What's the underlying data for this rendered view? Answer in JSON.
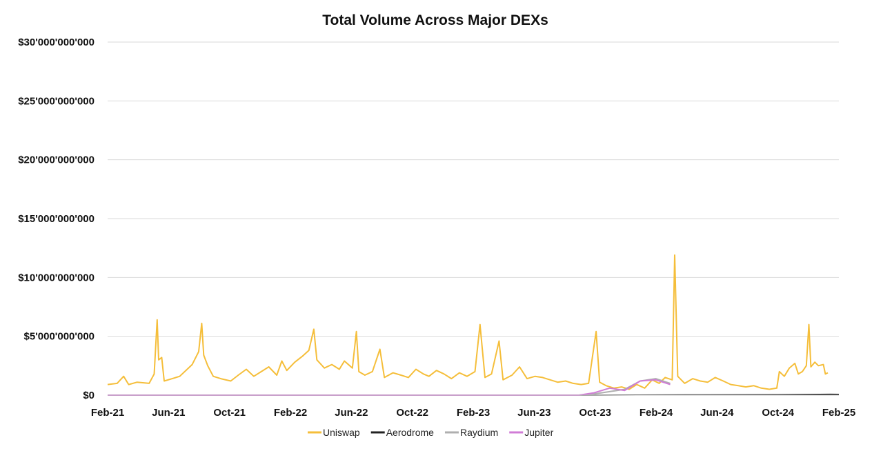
{
  "chart_data": {
    "type": "line",
    "title": "Total Volume Across Major DEXs",
    "xlabel": "",
    "ylabel": "",
    "x_ticks": [
      "Feb-21",
      "Jun-21",
      "Oct-21",
      "Feb-22",
      "Jun-22",
      "Oct-22",
      "Feb-23",
      "Jun-23",
      "Oct-23",
      "Feb-24",
      "Jun-24",
      "Oct-24",
      "Feb-25"
    ],
    "y_ticks": [
      "$0",
      "$5'000'000'000",
      "$10'000'000'000",
      "$15'000'000'000",
      "$20'000'000'000",
      "$25'000'000'000",
      "$30'000'000'000"
    ],
    "ylim": [
      0,
      30000000000
    ],
    "x_range": [
      "2021-02-01",
      "2025-02-01"
    ],
    "grid": "horizontal",
    "legend_position": "bottom",
    "series": [
      {
        "name": "Uniswap",
        "color": "#F5BE3A",
        "points": [
          [
            "2021-02-01",
            0.9
          ],
          [
            "2021-02-20",
            1.0
          ],
          [
            "2021-03-05",
            1.6
          ],
          [
            "2021-03-15",
            0.9
          ],
          [
            "2021-04-01",
            1.1
          ],
          [
            "2021-04-25",
            1.0
          ],
          [
            "2021-05-05",
            1.8
          ],
          [
            "2021-05-11",
            6.4
          ],
          [
            "2021-05-14",
            3.0
          ],
          [
            "2021-05-20",
            3.2
          ],
          [
            "2021-05-25",
            1.2
          ],
          [
            "2021-06-10",
            1.4
          ],
          [
            "2021-06-25",
            1.6
          ],
          [
            "2021-07-20",
            2.6
          ],
          [
            "2021-08-02",
            3.7
          ],
          [
            "2021-08-08",
            6.1
          ],
          [
            "2021-08-12",
            3.4
          ],
          [
            "2021-08-20",
            2.5
          ],
          [
            "2021-08-31",
            1.6
          ],
          [
            "2021-09-15",
            1.4
          ],
          [
            "2021-10-05",
            1.2
          ],
          [
            "2021-10-20",
            1.7
          ],
          [
            "2021-11-05",
            2.2
          ],
          [
            "2021-11-20",
            1.6
          ],
          [
            "2021-12-05",
            2.0
          ],
          [
            "2021-12-20",
            2.4
          ],
          [
            "2022-01-05",
            1.7
          ],
          [
            "2022-01-15",
            2.9
          ],
          [
            "2022-01-25",
            2.1
          ],
          [
            "2022-02-10",
            2.8
          ],
          [
            "2022-02-25",
            3.3
          ],
          [
            "2022-03-10",
            3.8
          ],
          [
            "2022-03-20",
            5.6
          ],
          [
            "2022-03-26",
            3.0
          ],
          [
            "2022-04-10",
            2.3
          ],
          [
            "2022-04-25",
            2.6
          ],
          [
            "2022-05-10",
            2.2
          ],
          [
            "2022-05-20",
            2.9
          ],
          [
            "2022-06-05",
            2.3
          ],
          [
            "2022-06-13",
            5.4
          ],
          [
            "2022-06-18",
            2.0
          ],
          [
            "2022-06-30",
            1.7
          ],
          [
            "2022-07-15",
            2.0
          ],
          [
            "2022-07-30",
            3.9
          ],
          [
            "2022-08-08",
            1.5
          ],
          [
            "2022-08-25",
            1.9
          ],
          [
            "2022-09-10",
            1.7
          ],
          [
            "2022-09-25",
            1.5
          ],
          [
            "2022-10-10",
            2.2
          ],
          [
            "2022-10-25",
            1.8
          ],
          [
            "2022-11-05",
            1.6
          ],
          [
            "2022-11-20",
            2.1
          ],
          [
            "2022-12-05",
            1.8
          ],
          [
            "2022-12-20",
            1.4
          ],
          [
            "2023-01-05",
            1.9
          ],
          [
            "2023-01-20",
            1.6
          ],
          [
            "2023-02-05",
            2.0
          ],
          [
            "2023-02-15",
            6.0
          ],
          [
            "2023-02-25",
            1.5
          ],
          [
            "2023-03-10",
            1.8
          ],
          [
            "2023-03-25",
            4.6
          ],
          [
            "2023-04-02",
            1.3
          ],
          [
            "2023-04-20",
            1.7
          ],
          [
            "2023-05-05",
            2.4
          ],
          [
            "2023-05-20",
            1.4
          ],
          [
            "2023-06-05",
            1.6
          ],
          [
            "2023-06-20",
            1.5
          ],
          [
            "2023-07-05",
            1.3
          ],
          [
            "2023-07-20",
            1.1
          ],
          [
            "2023-08-05",
            1.2
          ],
          [
            "2023-08-20",
            1.0
          ],
          [
            "2023-09-05",
            0.9
          ],
          [
            "2023-09-20",
            1.0
          ],
          [
            "2023-10-05",
            5.4
          ],
          [
            "2023-10-12",
            1.1
          ],
          [
            "2023-10-25",
            0.8
          ],
          [
            "2023-11-10",
            0.6
          ],
          [
            "2023-11-25",
            0.7
          ],
          [
            "2023-12-10",
            0.5
          ],
          [
            "2023-12-25",
            0.9
          ],
          [
            "2024-01-10",
            0.6
          ],
          [
            "2024-01-25",
            1.3
          ],
          [
            "2024-02-08",
            1.0
          ],
          [
            "2024-02-20",
            1.5
          ],
          [
            "2024-03-05",
            1.3
          ],
          [
            "2024-03-10",
            11.9
          ],
          [
            "2024-03-16",
            1.6
          ],
          [
            "2024-03-30",
            1.0
          ],
          [
            "2024-04-15",
            1.4
          ],
          [
            "2024-04-30",
            1.2
          ],
          [
            "2024-05-15",
            1.1
          ],
          [
            "2024-05-30",
            1.5
          ],
          [
            "2024-06-15",
            1.2
          ],
          [
            "2024-06-30",
            0.9
          ],
          [
            "2024-07-15",
            0.8
          ],
          [
            "2024-07-30",
            0.7
          ],
          [
            "2024-08-15",
            0.8
          ],
          [
            "2024-08-30",
            0.6
          ],
          [
            "2024-09-15",
            0.5
          ],
          [
            "2024-09-30",
            0.6
          ],
          [
            "2024-10-05",
            2.0
          ],
          [
            "2024-10-15",
            1.6
          ],
          [
            "2024-10-25",
            2.3
          ],
          [
            "2024-11-05",
            2.7
          ],
          [
            "2024-11-12",
            1.8
          ],
          [
            "2024-11-20",
            2.0
          ],
          [
            "2024-11-28",
            2.5
          ],
          [
            "2024-12-03",
            6.0
          ],
          [
            "2024-12-07",
            2.4
          ],
          [
            "2024-12-15",
            2.8
          ],
          [
            "2024-12-22",
            2.5
          ],
          [
            "2025-01-01",
            2.6
          ],
          [
            "2025-01-05",
            1.8
          ],
          [
            "2025-01-10",
            1.9
          ]
        ]
      },
      {
        "name": "Aerodrome",
        "color": "#222222",
        "points": [
          [
            "2021-02-01",
            0
          ],
          [
            "2023-10-01",
            0
          ],
          [
            "2024-04-01",
            0.03
          ],
          [
            "2024-10-01",
            0.04
          ],
          [
            "2025-01-15",
            0.08
          ],
          [
            "2025-02-01",
            0.07
          ]
        ]
      },
      {
        "name": "Raydium",
        "color": "#AFAFAF",
        "points": [
          [
            "2021-02-01",
            0
          ],
          [
            "2023-09-01",
            0
          ],
          [
            "2023-10-01",
            0.1
          ],
          [
            "2023-11-01",
            0.3
          ],
          [
            "2023-12-01",
            0.5
          ],
          [
            "2024-01-01",
            1.2
          ],
          [
            "2024-02-01",
            1.4
          ],
          [
            "2024-03-01",
            1.0
          ]
        ]
      },
      {
        "name": "Jupiter",
        "color": "#D07CD6",
        "points": [
          [
            "2021-02-01",
            0
          ],
          [
            "2023-09-01",
            0
          ],
          [
            "2023-10-01",
            0.2
          ],
          [
            "2023-11-01",
            0.6
          ],
          [
            "2023-12-01",
            0.4
          ],
          [
            "2024-01-01",
            1.2
          ],
          [
            "2024-02-01",
            1.3
          ],
          [
            "2024-03-01",
            0.9
          ]
        ]
      }
    ]
  },
  "legend": [
    "Uniswap",
    "Aerodrome",
    "Raydium",
    "Jupiter"
  ]
}
